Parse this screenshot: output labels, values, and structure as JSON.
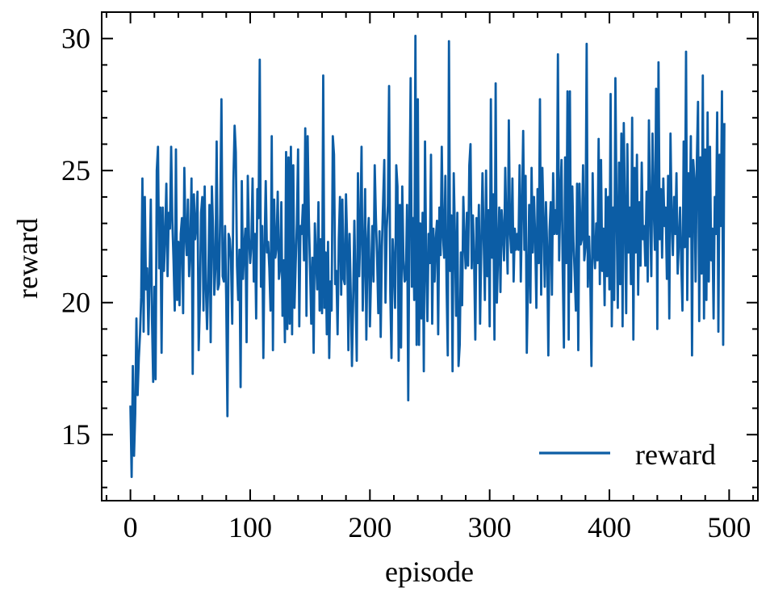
{
  "chart_data": {
    "type": "line",
    "title": "",
    "xlabel": "episode",
    "ylabel": "reward",
    "xlim": [
      -24,
      524
    ],
    "ylim": [
      12.5,
      31.0
    ],
    "xticks": [
      0,
      100,
      200,
      300,
      400,
      500
    ],
    "xtick_labels": [
      "0",
      "100",
      "200",
      "300",
      "400",
      "500"
    ],
    "yticks": [
      15,
      20,
      25,
      30
    ],
    "ytick_labels": [
      "15",
      "20",
      "25",
      "30"
    ],
    "x_minor_step": 20,
    "y_minor_step": 1,
    "grid": false,
    "legend_position": "lower right",
    "series": [
      {
        "name": "reward",
        "color": "#0C5DA5",
        "x_start": 0,
        "x_step": 1,
        "values": [
          16.1,
          13.4,
          17.6,
          14.2,
          15.8,
          19.4,
          16.5,
          17.9,
          18.8,
          20.2,
          24.7,
          18.9,
          24.0,
          20.5,
          21.3,
          18.8,
          21.0,
          23.9,
          19.4,
          17.0,
          20.6,
          17.1,
          25.0,
          25.9,
          21.3,
          23.6,
          18.1,
          23.6,
          21.2,
          22.5,
          24.5,
          21.0,
          23.4,
          22.8,
          25.9,
          23.1,
          21.6,
          19.7,
          25.8,
          20.1,
          22.3,
          19.9,
          22.6,
          23.2,
          19.6,
          25.1,
          22.6,
          21.8,
          23.9,
          21.0,
          22.1,
          24.7,
          17.3,
          24.1,
          22.4,
          23.0,
          24.2,
          18.2,
          20.0,
          23.4,
          24.0,
          19.7,
          24.4,
          20.6,
          19.0,
          20.9,
          23.7,
          18.5,
          24.4,
          22.8,
          20.3,
          21.3,
          26.1,
          20.5,
          20.7,
          23.4,
          27.7,
          21.0,
          20.8,
          22.9,
          20.1,
          15.7,
          22.6,
          22.4,
          21.6,
          19.2,
          24.6,
          26.7,
          25.7,
          21.4,
          20.1,
          22.0,
          16.8,
          24.6,
          20.9,
          22.1,
          22.8,
          18.5,
          24.8,
          22.5,
          21.5,
          22.2,
          24.7,
          20.8,
          22.6,
          19.4,
          24.3,
          23.2,
          29.2,
          20.6,
          22.9,
          17.9,
          22.1,
          24.6,
          21.9,
          22.3,
          21.3,
          19.7,
          26.3,
          18.2,
          23.9,
          21.7,
          22.1,
          24.2,
          20.9,
          21.3,
          23.8,
          19.5,
          21.6,
          18.5,
          25.7,
          19.0,
          25.5,
          19.2,
          25.9,
          18.8,
          25.2,
          19.8,
          21.5,
          23.0,
          25.8,
          19.1,
          22.9,
          22.6,
          23.7,
          21.6,
          26.6,
          19.5,
          26.3,
          23.2,
          21.3,
          19.2,
          21.7,
          18.1,
          23.0,
          21.7,
          20.5,
          23.8,
          19.7,
          22.4,
          19.6,
          28.6,
          19.8,
          21.9,
          18.8,
          22.3,
          17.9,
          20.8,
          19.7,
          26.3,
          25.6,
          20.7,
          21.2,
          18.8,
          22.4,
          24.0,
          20.3,
          23.9,
          20.9,
          20.7,
          24.1,
          22.3,
          18.2,
          22.6,
          20.3,
          17.6,
          20.1,
          23.1,
          20.5,
          17.8,
          24.9,
          21.0,
          22.7,
          25.9,
          19.7,
          21.6,
          24.3,
          18.6,
          22.2,
          23.2,
          19.1,
          21.1,
          22.9,
          20.8,
          25.2,
          23.2,
          21.7,
          19.6,
          22.7,
          18.7,
          22.1,
          23.8,
          25.4,
          20.0,
          22.8,
          23.7,
          28.2,
          20.4,
          17.9,
          22.4,
          21.4,
          19.8,
          25.2,
          24.4,
          17.8,
          23.7,
          18.3,
          24.4,
          21.6,
          20.8,
          20.9,
          23.7,
          16.3,
          23.4,
          28.5,
          20.6,
          23.2,
          20.1,
          30.1,
          18.4,
          27.7,
          18.4,
          23.0,
          19.4,
          23.4,
          17.4,
          26.1,
          21.4,
          19.3,
          22.6,
          21.5,
          25.6,
          19.2,
          22.8,
          20.8,
          22.4,
          23.1,
          18.8,
          23.6,
          21.8,
          25.9,
          22.5,
          21.7,
          24.8,
          20.7,
          18.0,
          29.9,
          21.2,
          23.3,
          17.4,
          24.9,
          22.5,
          19.5,
          23.4,
          17.6,
          18.4,
          21.9,
          19.9,
          24.0,
          22.3,
          21.3,
          23.4,
          21.4,
          25.2,
          26.0,
          21.3,
          23.3,
          21.7,
          18.6,
          23.2,
          21.5,
          23.7,
          19.2,
          22.1,
          24.9,
          22.4,
          20.1,
          25.0,
          21.0,
          23.5,
          19.1,
          27.7,
          21.7,
          24.1,
          18.6,
          28.3,
          20.0,
          21.8,
          23.6,
          20.4,
          23.5,
          22.7,
          21.6,
          25.1,
          22.8,
          21.1,
          26.9,
          22.7,
          21.9,
          24.7,
          20.8,
          22.8,
          22.0,
          22.6,
          22.0,
          25.2,
          20.8,
          23.6,
          26.5,
          22.0,
          24.8,
          18.1,
          20.8,
          23.7,
          20.0,
          25.1,
          21.9,
          24.0,
          22.5,
          19.8,
          24.3,
          21.5,
          27.7,
          20.3,
          25.1,
          23.1,
          20.6,
          23.8,
          22.1,
          18.0,
          22.7,
          23.8,
          20.3,
          24.9,
          22.6,
          23.5,
          22.6,
          29.4,
          21.6,
          23.9,
          25.4,
          21.3,
          18.3,
          25.5,
          21.5,
          28.0,
          18.6,
          28.0,
          20.4,
          24.4,
          22.3,
          21.1,
          19.7,
          24.5,
          18.2,
          24.5,
          22.2,
          22.4,
          25.2,
          21.6,
          22.1,
          29.8,
          20.6,
          22.5,
          21.1,
          17.6,
          24.9,
          22.0,
          21.3,
          23.0,
          21.6,
          26.2,
          20.7,
          25.4,
          21.2,
          22.8,
          19.9,
          24.3,
          21.0,
          24.0,
          20.5,
          27.9,
          19.1,
          23.6,
          20.1,
          28.5,
          23.4,
          19.8,
          25.3,
          20.7,
          26.4,
          19.1,
          26.8,
          23.4,
          19.6,
          26.0,
          21.9,
          23.6,
          20.7,
          27.0,
          18.6,
          25.1,
          21.9,
          25.6,
          20.3,
          23.8,
          21.4,
          25.3,
          22.4,
          22.9,
          21.4,
          24.2,
          20.8,
          26.9,
          23.5,
          21.0,
          26.4,
          23.6,
          22.0,
          28.1,
          19.0,
          29.1,
          22.4,
          24.3,
          21.7,
          24.7,
          22.9,
          23.6,
          20.9,
          24.8,
          19.4,
          26.4,
          23.2,
          21.8,
          24.0,
          22.6,
          24.9,
          21.1,
          22.3,
          23.6,
          21.5,
          19.7,
          26.1,
          22.1,
          29.5,
          20.1,
          24.9,
          22.5,
          26.3,
          18.0,
          25.4,
          24.7,
          20.8,
          25.3,
          27.6,
          19.3,
          25.5,
          21.1,
          28.6,
          19.4,
          25.8,
          20.1,
          27.2,
          20.8,
          25.9,
          21.6,
          22.8,
          19.4,
          24.0,
          22.6,
          27.2,
          18.9,
          25.6,
          22.9,
          28.0,
          18.4,
          26.8
        ]
      }
    ]
  }
}
